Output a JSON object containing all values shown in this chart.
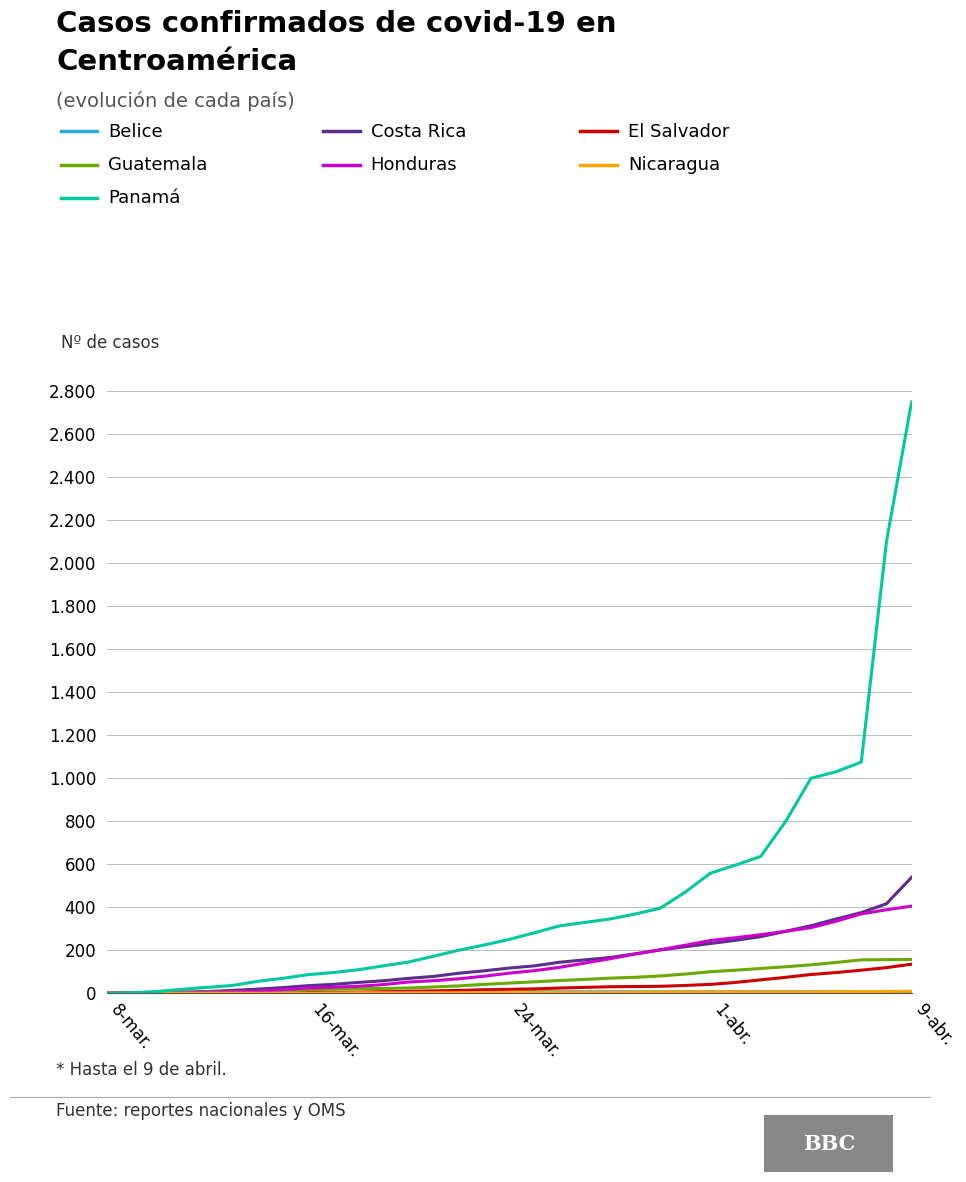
{
  "title_line1": "Casos confirmados de covid-19 en",
  "title_line2": "Centroamérica",
  "subtitle": "(evolución de cada país)",
  "ylabel": "Nº de casos",
  "footnote": "* Hasta el 9 de abril.",
  "source": "Fuente: reportes nacionales y OMS",
  "x_labels": [
    "8-mar.",
    "16-mar.",
    "24-mar.",
    "1-abr.",
    "9-abr."
  ],
  "x_tick_pos": [
    0,
    8,
    16,
    24,
    32
  ],
  "xlim": [
    0,
    32
  ],
  "ylim": [
    0,
    2800
  ],
  "yticks": [
    0,
    200,
    400,
    600,
    800,
    1000,
    1200,
    1400,
    1600,
    1800,
    2000,
    2200,
    2400,
    2600,
    2800
  ],
  "countries": {
    "Belice": {
      "color": "#29abe2",
      "x": [
        0,
        1,
        2,
        3,
        4,
        5,
        6,
        7,
        8,
        9,
        10,
        11,
        12,
        13,
        14,
        15,
        16,
        17,
        18,
        19,
        20,
        21,
        22,
        23,
        24,
        25,
        26,
        27,
        28,
        29,
        30,
        31,
        32
      ],
      "y": [
        0,
        0,
        0,
        0,
        0,
        0,
        0,
        0,
        2,
        2,
        2,
        4,
        4,
        5,
        5,
        6,
        6,
        7,
        7,
        7,
        7,
        7,
        7,
        7,
        7,
        7,
        7,
        7,
        7,
        7,
        7,
        7,
        7
      ]
    },
    "Costa Rica": {
      "color": "#5b2d8e",
      "x": [
        0,
        1,
        2,
        3,
        4,
        5,
        6,
        7,
        8,
        9,
        10,
        11,
        12,
        13,
        14,
        15,
        16,
        17,
        18,
        19,
        20,
        21,
        22,
        23,
        24,
        25,
        26,
        27,
        28,
        29,
        30,
        31,
        32
      ],
      "y": [
        0,
        1,
        2,
        5,
        8,
        13,
        19,
        26,
        35,
        41,
        50,
        58,
        69,
        78,
        93,
        104,
        117,
        127,
        144,
        155,
        166,
        183,
        201,
        216,
        231,
        246,
        263,
        288,
        314,
        345,
        375,
        416,
        539
      ]
    },
    "El Salvador": {
      "color": "#cc0000",
      "x": [
        0,
        1,
        2,
        3,
        4,
        5,
        6,
        7,
        8,
        9,
        10,
        11,
        12,
        13,
        14,
        15,
        16,
        17,
        18,
        19,
        20,
        21,
        22,
        23,
        24,
        25,
        26,
        27,
        28,
        29,
        30,
        31,
        32
      ],
      "y": [
        0,
        0,
        0,
        0,
        0,
        0,
        0,
        0,
        3,
        4,
        5,
        7,
        9,
        11,
        13,
        16,
        18,
        20,
        24,
        27,
        30,
        31,
        32,
        36,
        41,
        50,
        62,
        74,
        87,
        96,
        107,
        119,
        135
      ]
    },
    "Guatemala": {
      "color": "#6aaa00",
      "x": [
        0,
        1,
        2,
        3,
        4,
        5,
        6,
        7,
        8,
        9,
        10,
        11,
        12,
        13,
        14,
        15,
        16,
        17,
        18,
        19,
        20,
        21,
        22,
        23,
        24,
        25,
        26,
        27,
        28,
        29,
        30,
        31,
        32
      ],
      "y": [
        0,
        0,
        1,
        3,
        6,
        6,
        8,
        13,
        17,
        18,
        21,
        22,
        24,
        29,
        34,
        41,
        47,
        53,
        59,
        64,
        70,
        74,
        80,
        89,
        100,
        107,
        115,
        123,
        132,
        143,
        155,
        156,
        157
      ]
    },
    "Honduras": {
      "color": "#cc00cc",
      "x": [
        0,
        1,
        2,
        3,
        4,
        5,
        6,
        7,
        8,
        9,
        10,
        11,
        12,
        13,
        14,
        15,
        16,
        17,
        18,
        19,
        20,
        21,
        22,
        23,
        24,
        25,
        26,
        27,
        28,
        29,
        30,
        31,
        32
      ],
      "y": [
        0,
        0,
        0,
        2,
        4,
        6,
        9,
        16,
        24,
        28,
        32,
        40,
        52,
        58,
        67,
        79,
        93,
        105,
        120,
        140,
        160,
        182,
        202,
        223,
        245,
        258,
        272,
        288,
        305,
        335,
        369,
        388,
        405
      ]
    },
    "Nicaragua": {
      "color": "#ffa500",
      "x": [
        0,
        1,
        2,
        3,
        4,
        5,
        6,
        7,
        8,
        9,
        10,
        11,
        12,
        13,
        14,
        15,
        16,
        17,
        18,
        19,
        20,
        21,
        22,
        23,
        24,
        25,
        26,
        27,
        28,
        29,
        30,
        31,
        32
      ],
      "y": [
        0,
        0,
        0,
        0,
        0,
        0,
        0,
        0,
        0,
        1,
        2,
        2,
        2,
        2,
        2,
        3,
        4,
        4,
        4,
        4,
        4,
        5,
        6,
        6,
        6,
        6,
        6,
        6,
        6,
        7,
        8,
        8,
        9
      ]
    },
    "Panamá": {
      "color": "#00c8a0",
      "x": [
        0,
        1,
        2,
        3,
        4,
        5,
        6,
        7,
        8,
        9,
        10,
        11,
        12,
        13,
        14,
        15,
        16,
        17,
        18,
        19,
        20,
        21,
        22,
        23,
        24,
        25,
        26,
        27,
        28,
        29,
        30,
        31,
        32
      ],
      "y": [
        0,
        2,
        8,
        18,
        27,
        36,
        55,
        69,
        86,
        96,
        109,
        127,
        145,
        172,
        200,
        224,
        250,
        281,
        313,
        329,
        345,
        368,
        395,
        470,
        558,
        596,
        636,
        800,
        1000,
        1030,
        1075,
        2100,
        2750
      ]
    }
  },
  "legend_items": [
    [
      "Belice",
      "#29abe2"
    ],
    [
      "Costa Rica",
      "#5b2d8e"
    ],
    [
      "El Salvador",
      "#cc0000"
    ],
    [
      "Guatemala",
      "#6aaa00"
    ],
    [
      "Honduras",
      "#cc00cc"
    ],
    [
      "Nicaragua",
      "#ffa500"
    ],
    [
      "Panamá",
      "#00c8a0"
    ]
  ],
  "background_color": "#ffffff",
  "grid_color": "#bbbbbb"
}
